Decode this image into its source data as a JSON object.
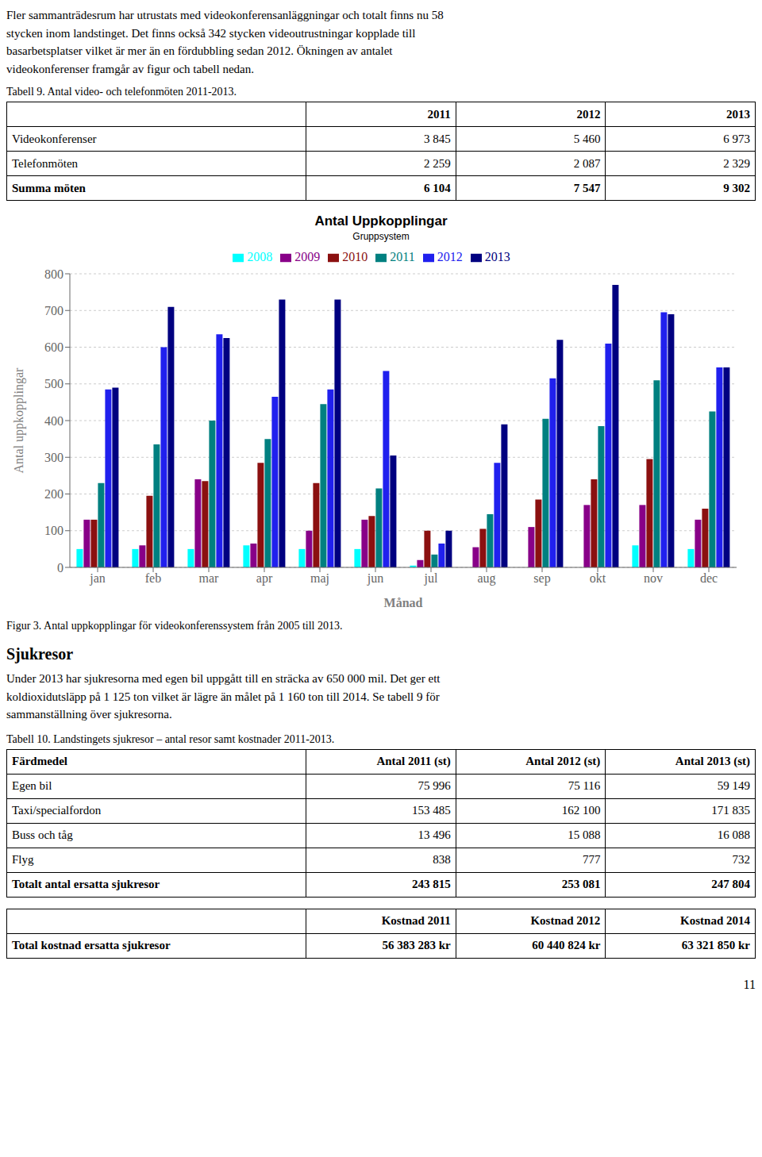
{
  "chart_data": {
    "type": "bar",
    "title": "Antal Uppkopplingar",
    "subtitle": "Gruppsystem",
    "xlabel": "Månad",
    "ylabel": "Antal uppkopplingar",
    "categories": [
      "jan",
      "feb",
      "mar",
      "apr",
      "maj",
      "jun",
      "jul",
      "aug",
      "sep",
      "okt",
      "nov",
      "dec"
    ],
    "series": [
      {
        "name": "2008",
        "color": "#00FFFF",
        "values": [
          50,
          50,
          50,
          60,
          50,
          50,
          5,
          0,
          0,
          0,
          60,
          50
        ]
      },
      {
        "name": "2009",
        "color": "#880088",
        "values": [
          130,
          60,
          240,
          65,
          100,
          130,
          20,
          55,
          110,
          170,
          170,
          130
        ]
      },
      {
        "name": "2010",
        "color": "#8B1010",
        "values": [
          130,
          195,
          235,
          285,
          230,
          140,
          100,
          105,
          185,
          240,
          295,
          160
        ]
      },
      {
        "name": "2011",
        "color": "#008080",
        "values": [
          230,
          335,
          400,
          350,
          445,
          215,
          35,
          145,
          405,
          385,
          510,
          425
        ]
      },
      {
        "name": "2012",
        "color": "#2020EE",
        "values": [
          485,
          600,
          635,
          465,
          485,
          535,
          65,
          285,
          515,
          610,
          695,
          545
        ]
      },
      {
        "name": "2013",
        "color": "#000080",
        "values": [
          490,
          710,
          625,
          730,
          730,
          305,
          100,
          390,
          620,
          770,
          690,
          545
        ]
      }
    ],
    "ylim": [
      0,
      800
    ],
    "yticks": [
      0,
      100,
      200,
      300,
      400,
      500,
      600,
      700,
      800
    ],
    "grid": true,
    "legend": "top",
    "annotations": [
      "Fler sammanträdesrum har utrustats med videokonferensanläggningar och totalt finns nu 58\nstycken inom landstinget. Det finns också 342 stycken videoutrustningar kopplade till\nbasarbetsplatser vilket är mer än en fördubbling sedan 2012. Ökningen av antalet\nvideokonferenser framgår av figur och tabell nedan.",
      "Figur 3. Antal uppkopplingar för videokonferenssystem från 2005 till 2013.",
      "Sjukresor",
      "Under 2013 har sjukresorna med egen bil uppgått till en sträcka av 650 000 mil. Det ger ett\nkoldioxidutsläpp på 1 125 ton vilket är lägre än målet på 1 160 ton till 2014. Se tabell 9 för\nsammanställning över sjukresorna.",
      "11"
    ],
    "tables": [
      {
        "caption": "Tabell 9. Antal video- och telefonmöten 2011-2013.",
        "headers": [
          null,
          "2011",
          "2012",
          "2013"
        ],
        "rows": [
          [
            "Videokonferenser",
            "3 845",
            "5 460",
            "6 973"
          ],
          [
            "Telefonmöten",
            "2 259",
            "2 087",
            "2 329"
          ],
          [
            "Summa möten",
            "6 104",
            "7 547",
            "9 302"
          ]
        ]
      },
      {
        "caption": "Tabell 10. Landstingets sjukresor – antal resor samt kostnader 2011-2013.",
        "headers": [
          "Färdmedel",
          "Antal 2011 (st)",
          "Antal 2012 (st)",
          "Antal 2013 (st)"
        ],
        "rows": [
          [
            "Egen bil",
            "75 996",
            "75 116",
            "59 149"
          ],
          [
            "Taxi/specialfordon",
            "153 485",
            "162 100",
            "171 835"
          ],
          [
            "Buss och tåg",
            "13 496",
            "15 088",
            "16 088"
          ],
          [
            "Flyg",
            "838",
            "777",
            "732"
          ],
          [
            "Totalt antal ersatta sjukresor",
            "243 815",
            "253 081",
            "247 804"
          ]
        ]
      },
      {
        "headers": [
          null,
          "Kostnad 2011",
          "Kostnad 2012",
          "Kostnad 2014"
        ],
        "rows": [
          [
            "Total kostnad ersatta sjukresor",
            "56 383 283 kr",
            "60 440 824 kr",
            "63 321 850 kr"
          ]
        ]
      }
    ]
  }
}
